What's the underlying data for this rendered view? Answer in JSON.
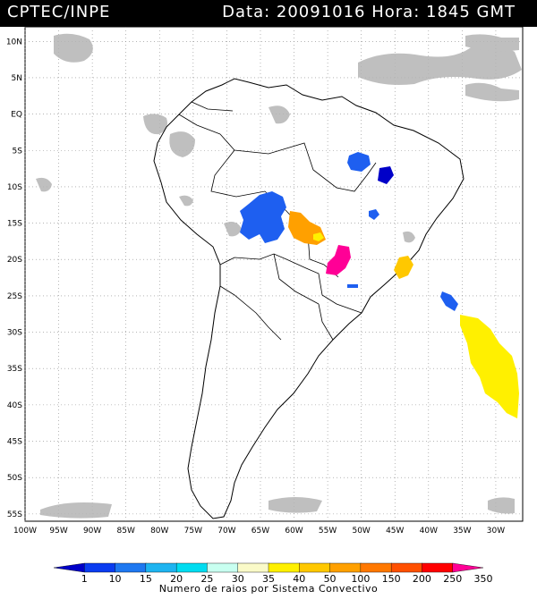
{
  "header": {
    "source": "CPTEC/INPE",
    "date_time": "Data: 20091016 Hora: 1845 GMT"
  },
  "map": {
    "lat_labels": [
      "10N",
      "5N",
      "EQ",
      "5S",
      "10S",
      "15S",
      "20S",
      "25S",
      "30S",
      "35S",
      "40S",
      "45S",
      "50S",
      "55S"
    ],
    "lon_labels": [
      "100W",
      "95W",
      "90W",
      "85W",
      "80W",
      "75W",
      "70W",
      "65W",
      "60W",
      "55W",
      "50W",
      "45W",
      "40W",
      "35W",
      "30W"
    ],
    "lon_range": [
      -100,
      -26
    ],
    "lat_range": [
      -56,
      12
    ],
    "grid": "dotted"
  },
  "colorbar": {
    "title": "Numero de raios por Sistema Convectivo",
    "ticks": [
      "1",
      "10",
      "15",
      "20",
      "25",
      "30",
      "35",
      "40",
      "50",
      "100",
      "150",
      "200",
      "250",
      "350"
    ],
    "colors": [
      "#0000c8",
      "#0a3cf0",
      "#1e78f0",
      "#1eb4f0",
      "#00dcf0",
      "#c8fff0",
      "#fafac8",
      "#fff000",
      "#ffc800",
      "#ffa000",
      "#ff7800",
      "#ff5000",
      "#ff0000",
      "#ff0096"
    ]
  },
  "convective_systems": [
    {
      "name": "amazon-west-cluster",
      "color": "#1e5ff0",
      "lon": -64.5,
      "lat": -14.5
    },
    {
      "name": "mato-grosso-cluster",
      "color": "#ffa000",
      "lon": -60,
      "lat": -15.5
    },
    {
      "name": "paraguay-cluster",
      "color": "#ff0096",
      "lon": -54.5,
      "lat": -20
    },
    {
      "name": "minas-cluster",
      "color": "#ffc800",
      "lon": -43.5,
      "lat": -20.5
    },
    {
      "name": "northeast-cluster",
      "color": "#1e5ff0",
      "lon": -49,
      "lat": -6.5
    },
    {
      "name": "bahia-cluster",
      "color": "#0000c8",
      "lon": -45.5,
      "lat": -8.5
    },
    {
      "name": "atlantic-band",
      "color": "#fff000",
      "lon": -32,
      "lat": -34
    }
  ]
}
